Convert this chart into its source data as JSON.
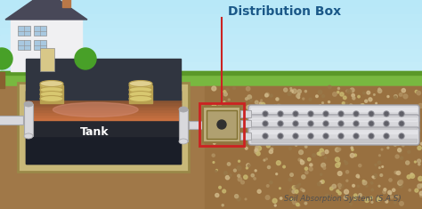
{
  "title": "Distribution Box",
  "label_tank": "Tank",
  "label_sas": "Soil Absorption System (S.A.S)",
  "sky_top": "#b8e8f8",
  "sky_bottom": "#dff4fc",
  "grass_color": "#78b840",
  "grass_dark": "#5a9828",
  "soil_color": "#a07848",
  "soil_right": "#987040",
  "tank_border": "#c8b878",
  "tank_inner": "#2a2a32",
  "tank_scum_top": "#c87858",
  "tank_scum_mid": "#d09060",
  "tank_water": "#383848",
  "pipe_white": "#d8d8dc",
  "pipe_gray": "#a8a8ac",
  "pipe_shadow": "#888890",
  "dist_box_face": "#b8a060",
  "dist_box_edge": "#907838",
  "dist_box_dark": "#987830",
  "red_line": "#cc2222",
  "title_color": "#1a5888",
  "sas_label_color": "#505050",
  "house_wall": "#f0f0f2",
  "house_roof": "#484858",
  "chimney_col": "#b87848",
  "window_col": "#a8c8e0",
  "door_col": "#d8c888",
  "tree_col": "#48a028",
  "trunk_col": "#886030",
  "lid_top": "#d8c870",
  "lid_side": "#b8a050",
  "gravel_colors": [
    "#c0a878",
    "#b09060",
    "#d0b888",
    "#987848",
    "#c8b870"
  ],
  "figsize": [
    4.74,
    2.35
  ],
  "dpi": 100
}
